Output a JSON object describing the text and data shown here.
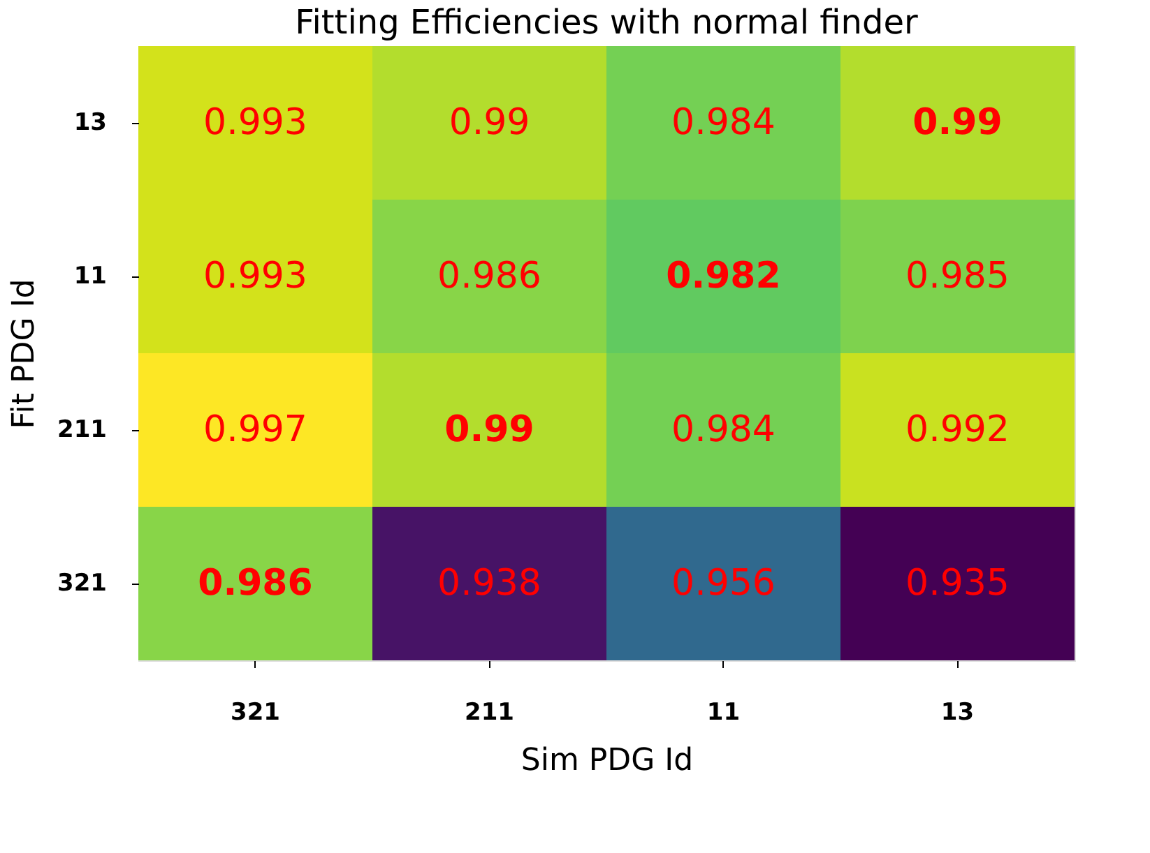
{
  "chart_data": {
    "type": "heatmap",
    "title": "Fitting Efficiencies with normal finder",
    "xlabel": "Sim PDG Id",
    "ylabel": "Fit PDG Id",
    "categories": [
      "321",
      "211",
      "11",
      "13"
    ],
    "y_categories": [
      "13",
      "11",
      "211",
      "321"
    ],
    "cells": [
      [
        0.993,
        0.99,
        0.984,
        0.99
      ],
      [
        0.993,
        0.986,
        0.982,
        0.985
      ],
      [
        0.997,
        0.99,
        0.984,
        0.992
      ],
      [
        0.986,
        0.938,
        0.956,
        0.935
      ]
    ],
    "data_labels": true
  }
}
